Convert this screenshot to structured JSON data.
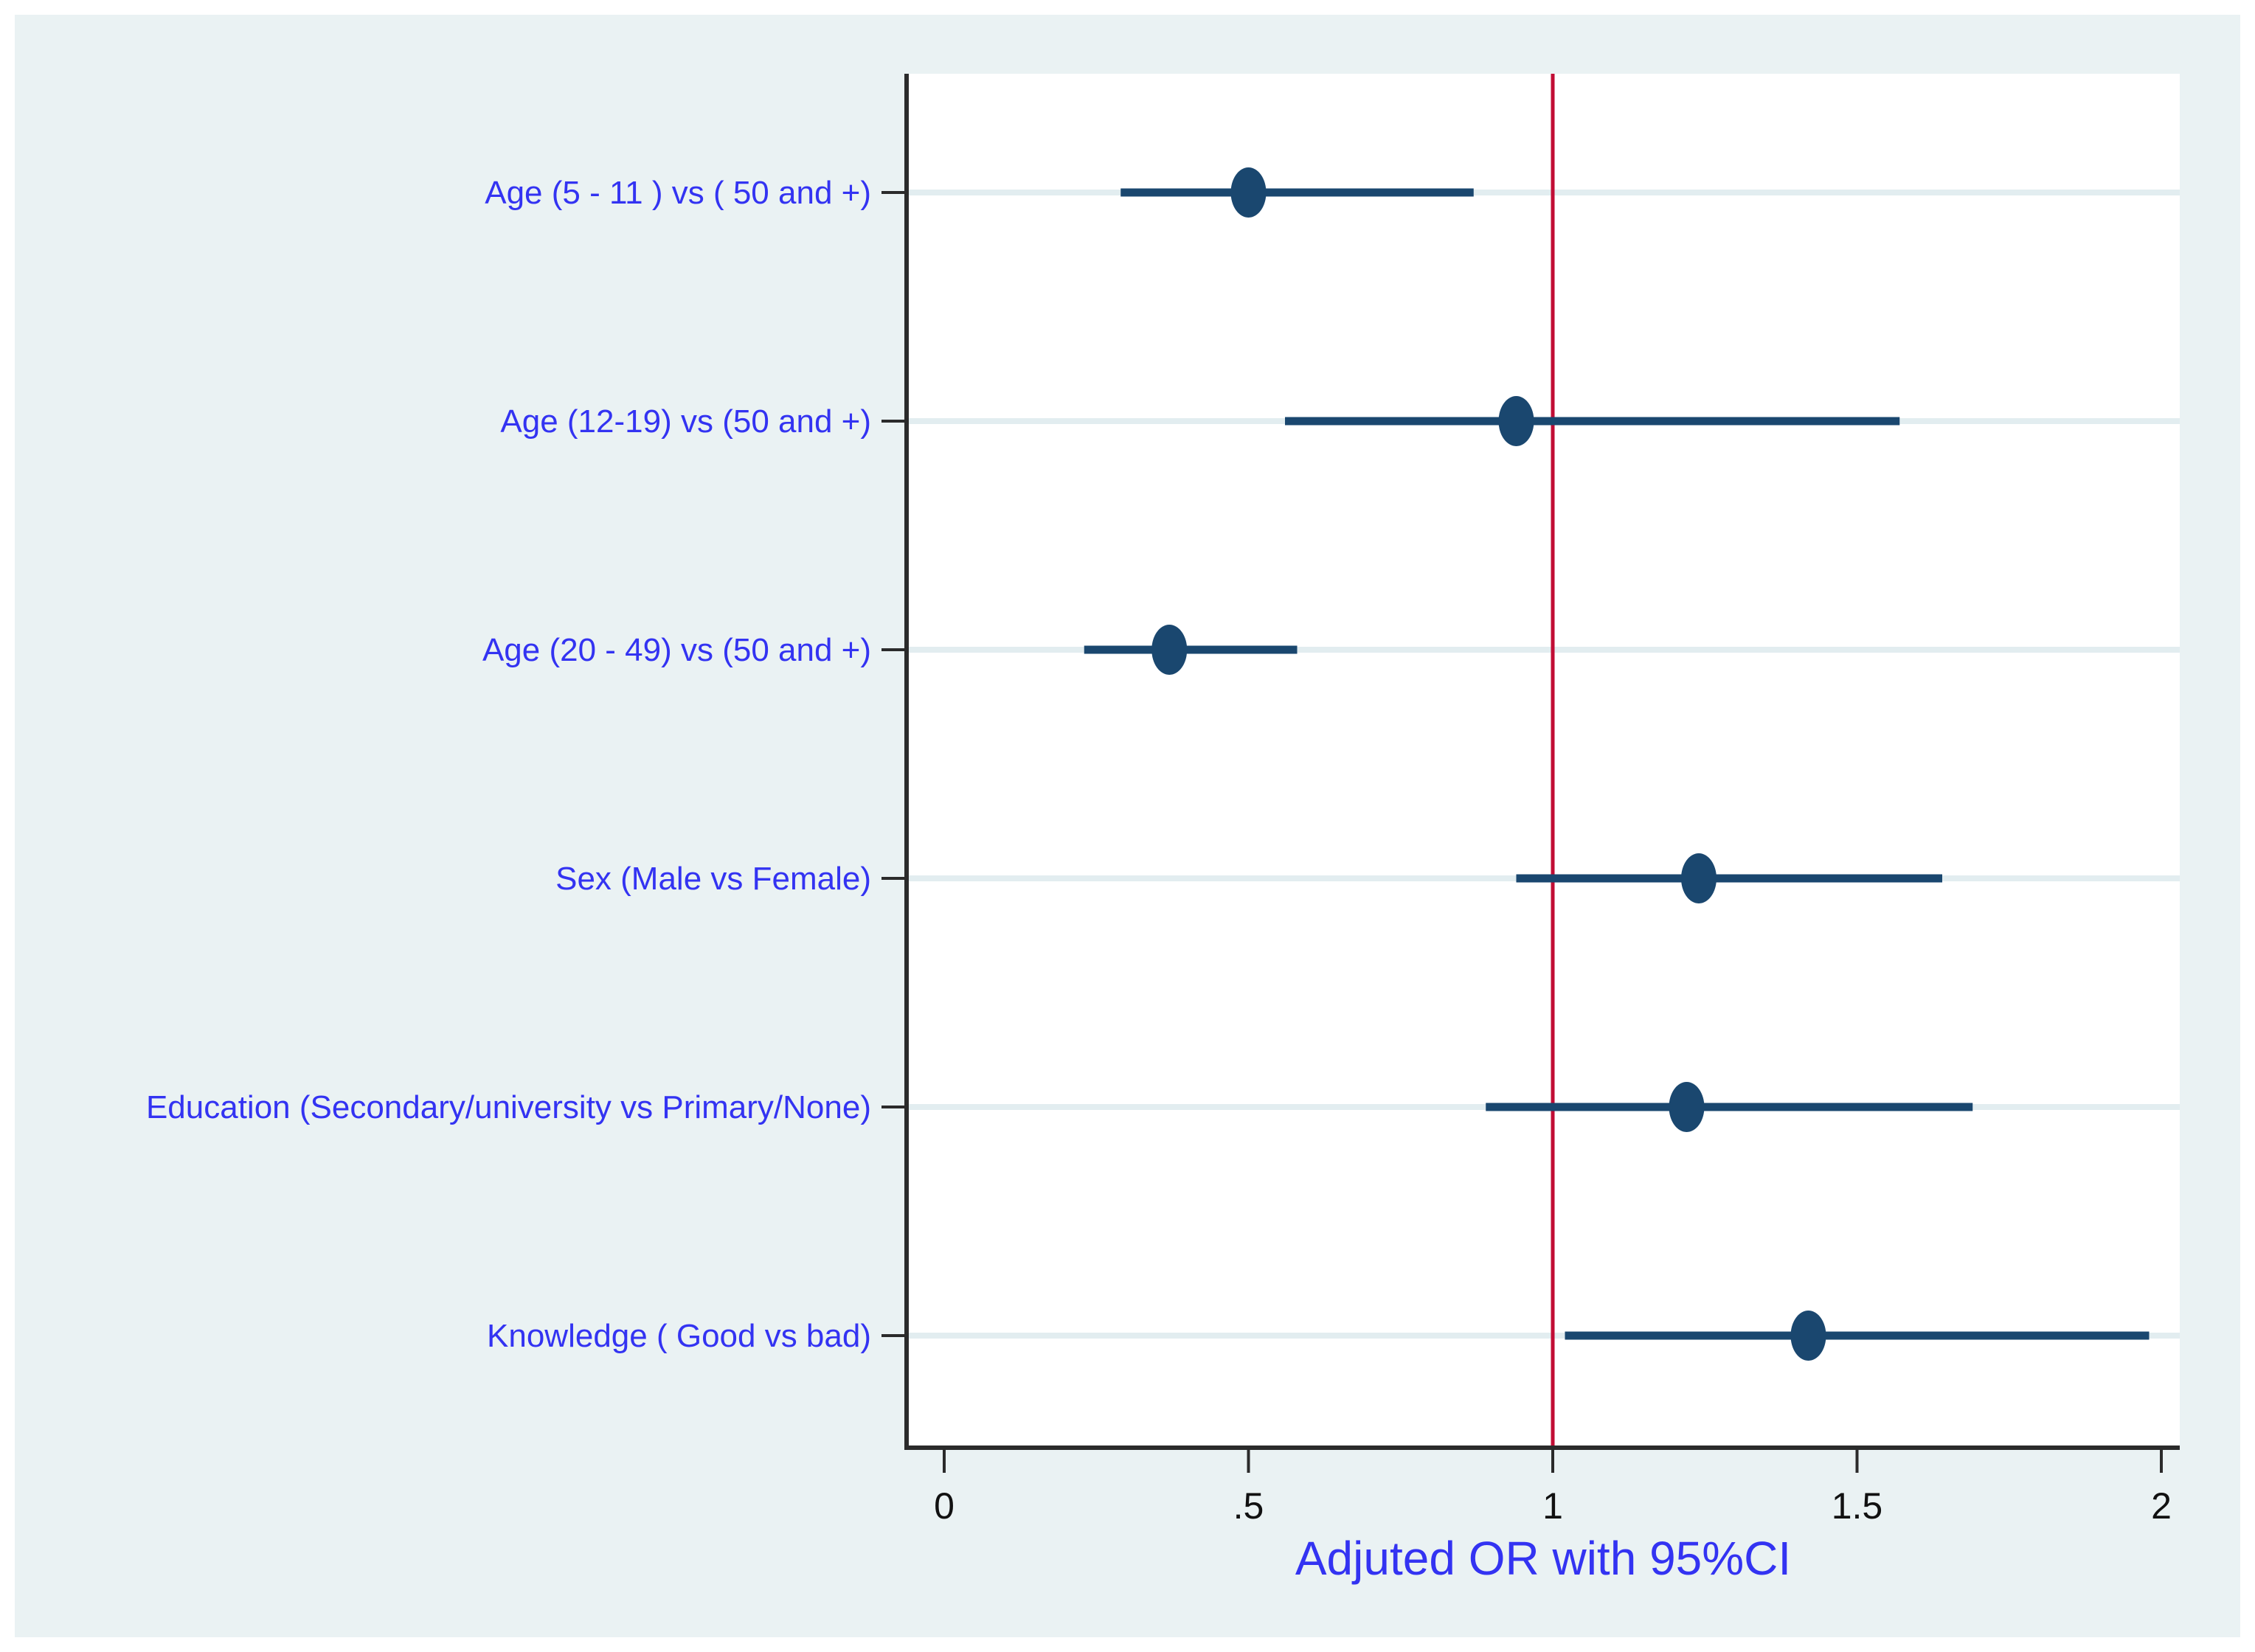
{
  "chart_data": {
    "type": "scatter",
    "subtype": "forest-plot",
    "title": "",
    "xlabel": "Adjuted OR with 95%CI",
    "ylabel": "",
    "categories": [
      "Age (5 - 11 ) vs ( 50 and +)",
      "Age (12-19) vs (50 and +)",
      "Age (20 - 49) vs (50 and +)",
      "Sex (Male vs Female)",
      "Education (Secondary/university vs Primary/None)",
      "Knowledge ( Good vs bad)"
    ],
    "points": [
      {
        "or": 0.5,
        "ci_low": 0.29,
        "ci_high": 0.87
      },
      {
        "or": 0.94,
        "ci_low": 0.56,
        "ci_high": 1.57
      },
      {
        "or": 0.37,
        "ci_low": 0.23,
        "ci_high": 0.58
      },
      {
        "or": 1.24,
        "ci_low": 0.94,
        "ci_high": 1.64
      },
      {
        "or": 1.22,
        "ci_low": 0.89,
        "ci_high": 1.69
      },
      {
        "or": 1.42,
        "ci_low": 1.02,
        "ci_high": 1.98
      }
    ],
    "x_ticks": [
      {
        "value": 0,
        "label": "0"
      },
      {
        "value": 0.5,
        "label": ".5"
      },
      {
        "value": 1,
        "label": "1"
      },
      {
        "value": 1.5,
        "label": "1.5"
      },
      {
        "value": 2,
        "label": "2"
      }
    ],
    "xlim": [
      -0.062,
      2.03
    ],
    "reference_line": 1,
    "grid": true,
    "legend": "none",
    "colors": {
      "marker": "#1a476f",
      "ci_line": "#1a476f",
      "reference_line": "#c10d35",
      "category_label": "#3333f2",
      "axis_title": "#3333f2",
      "tick_label": "#111111",
      "axis_line": "#2b2b2b",
      "grid_line": "#e2edf0",
      "graph_background": "#eaf2f3",
      "plot_background": "#ffffff",
      "page_background": "#ffffff"
    }
  }
}
